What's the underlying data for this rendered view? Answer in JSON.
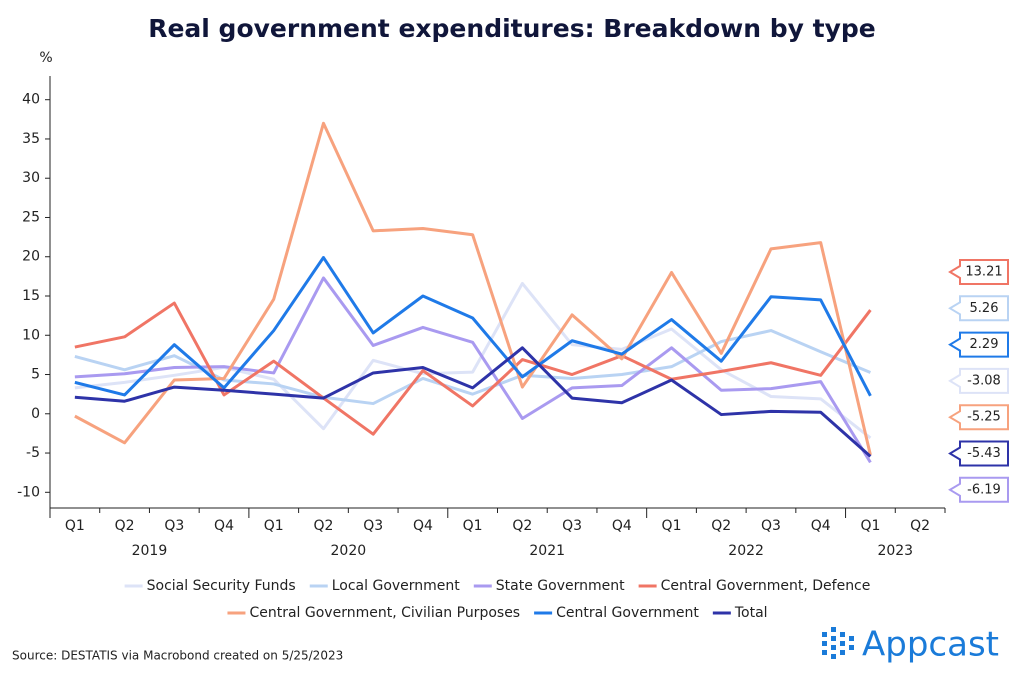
{
  "chart_data": {
    "type": "line",
    "title": "Real government expenditures: Breakdown by type",
    "y_unit": "%",
    "source": "Source: DESTATIS via Macrobond created on 5/25/2023",
    "logo": "Appcast",
    "categories": [
      "Q1",
      "Q2",
      "Q3",
      "Q4",
      "Q1",
      "Q2",
      "Q3",
      "Q4",
      "Q1",
      "Q2",
      "Q3",
      "Q4",
      "Q1",
      "Q2",
      "Q3",
      "Q4",
      "Q1",
      "Q2"
    ],
    "years": [
      "2019",
      "2020",
      "2021",
      "2022",
      "2023"
    ],
    "ylim": [
      -12,
      42
    ],
    "yticks": [
      -10,
      -5,
      0,
      5,
      10,
      15,
      20,
      25,
      30,
      35,
      40
    ],
    "series": [
      {
        "name": "Social Security Funds",
        "color": "#dde3f7",
        "values": [
          3.3,
          4.0,
          4.9,
          5.9,
          4.4,
          -1.9,
          6.8,
          5.1,
          5.3,
          16.6,
          8.8,
          8.2,
          10.8,
          5.6,
          2.2,
          1.9,
          -3.08,
          null
        ]
      },
      {
        "name": "Local Government",
        "color": "#b9d3f3",
        "values": [
          7.3,
          5.6,
          7.4,
          4.3,
          3.8,
          2.1,
          1.3,
          4.5,
          2.5,
          4.9,
          4.5,
          5.0,
          6.0,
          9.2,
          10.6,
          7.9,
          5.26,
          null
        ]
      },
      {
        "name": "State Government",
        "color": "#a99af0",
        "values": [
          4.7,
          5.1,
          5.9,
          6.0,
          5.2,
          17.3,
          8.7,
          11.0,
          9.1,
          -0.6,
          3.3,
          3.6,
          8.4,
          3.0,
          3.2,
          4.1,
          -6.19,
          null
        ]
      },
      {
        "name": "Central Government, Defence",
        "color": "#f07565",
        "values": [
          8.5,
          9.8,
          14.1,
          2.4,
          6.7,
          2.0,
          -2.6,
          5.5,
          1.0,
          6.9,
          5.0,
          7.4,
          4.4,
          5.4,
          6.5,
          4.9,
          13.21,
          null
        ]
      },
      {
        "name": "Central Government, Civilian Purposes",
        "color": "#f7a27e",
        "values": [
          -0.3,
          -3.7,
          4.3,
          4.5,
          14.6,
          37.0,
          23.3,
          23.6,
          22.8,
          3.4,
          12.6,
          7.0,
          18.0,
          7.7,
          21.0,
          21.8,
          -5.25,
          null
        ]
      },
      {
        "name": "Central Government",
        "color": "#1f7ae8",
        "values": [
          4.0,
          2.4,
          8.8,
          3.3,
          10.6,
          19.9,
          10.3,
          15.0,
          12.2,
          4.7,
          9.3,
          7.6,
          12.0,
          6.7,
          14.9,
          14.5,
          2.29,
          null
        ]
      },
      {
        "name": "Total",
        "color": "#2e33a8",
        "values": [
          2.1,
          1.6,
          3.4,
          3.0,
          2.5,
          2.0,
          5.2,
          5.9,
          3.3,
          8.4,
          2.0,
          1.4,
          4.3,
          -0.1,
          0.3,
          0.2,
          -5.43,
          null
        ]
      }
    ]
  }
}
